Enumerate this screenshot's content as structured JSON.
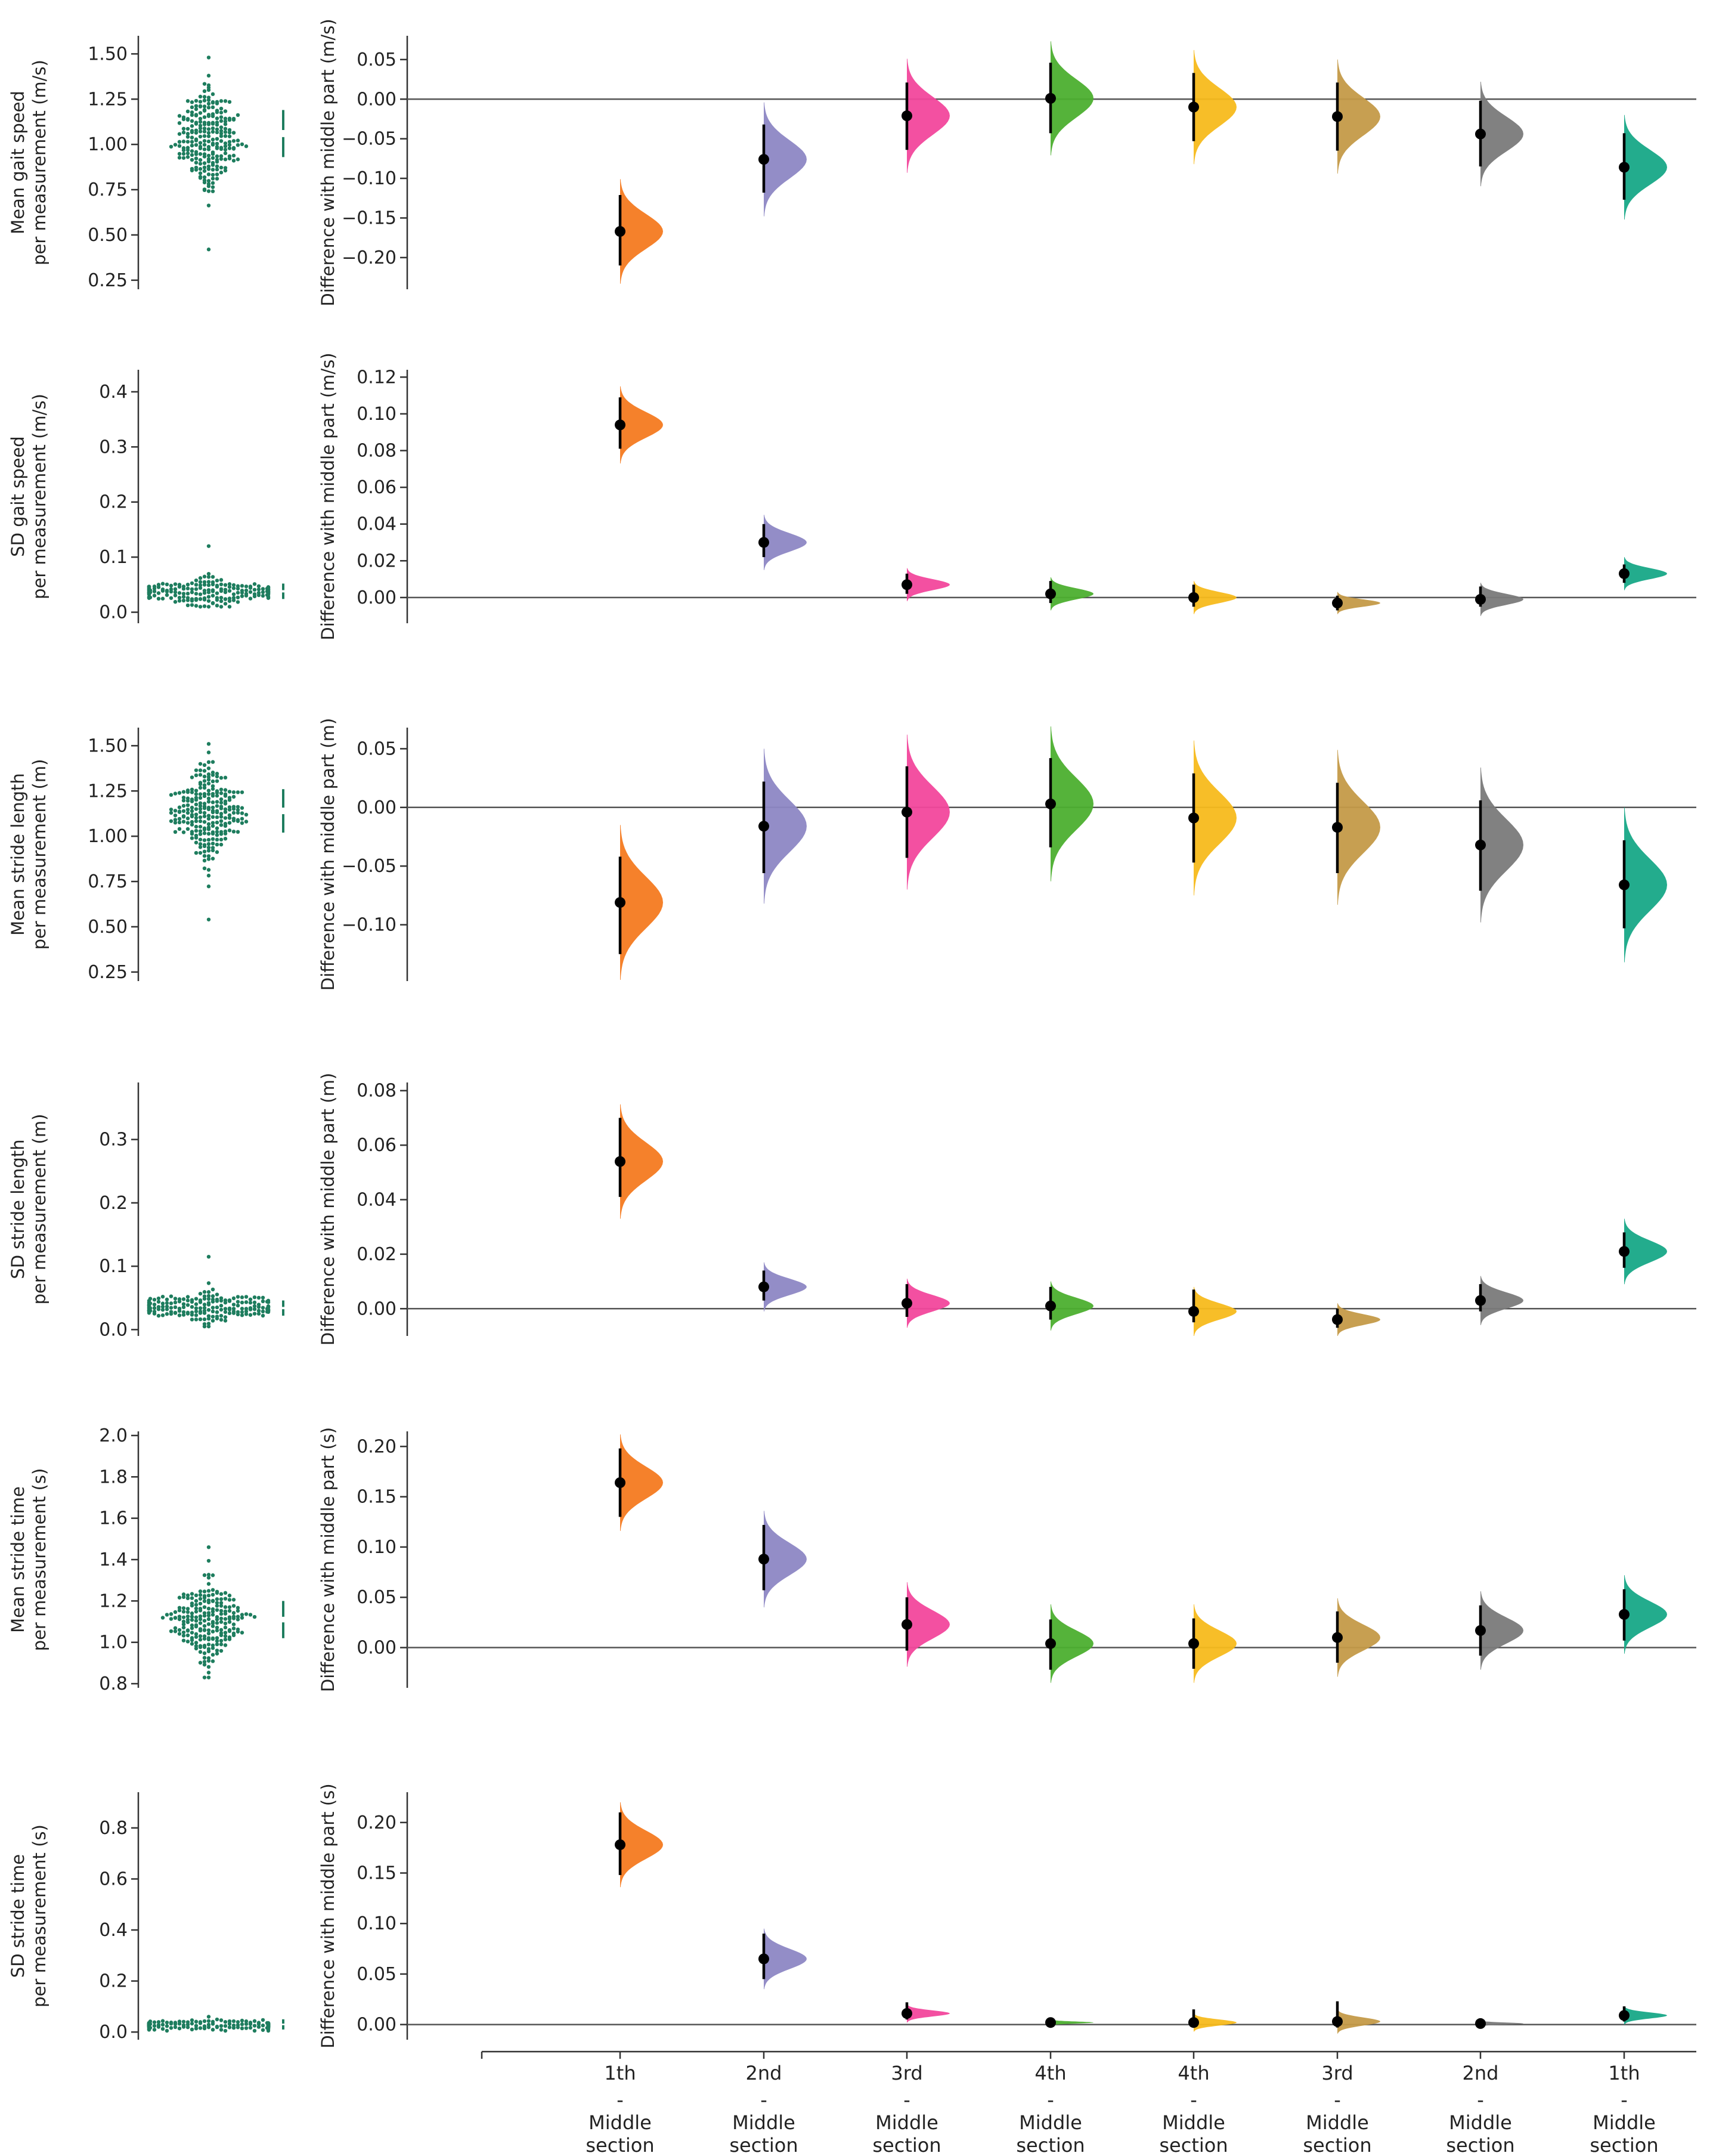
{
  "chart_data": [
    {
      "type": "estimation-plot",
      "raw_ylabel": [
        "Mean gait speed",
        "per measurement (m/s)"
      ],
      "raw_yticks": [
        "1.50",
        "1.25",
        "1.00",
        "0.75",
        "0.50",
        "0.25"
      ],
      "raw_ylim": [
        0.2,
        1.6
      ],
      "raw_distribution": {
        "center": 1.03,
        "spread": 0.14,
        "min": 0.42,
        "max": 1.48,
        "n": 240
      },
      "raw_gap": {
        "center": 1.06,
        "half": 0.13
      },
      "diff_ylabel": "Difference with middle part (m/s)",
      "diff_yticks": [
        "0.05",
        "0.00",
        "−0.05",
        "−0.10",
        "−0.15",
        "−0.20"
      ],
      "diff_ylim": [
        -0.24,
        0.08
      ],
      "diffs": [
        {
          "est": -0.167,
          "lo": -0.21,
          "hi": -0.121,
          "spread": 0.022
        },
        {
          "est": -0.076,
          "lo": -0.118,
          "hi": -0.032,
          "spread": 0.024
        },
        {
          "est": -0.021,
          "lo": -0.064,
          "hi": 0.021,
          "spread": 0.024
        },
        {
          "est": 0.001,
          "lo": -0.043,
          "hi": 0.046,
          "spread": 0.024
        },
        {
          "est": -0.01,
          "lo": -0.053,
          "hi": 0.033,
          "spread": 0.024
        },
        {
          "est": -0.022,
          "lo": -0.065,
          "hi": 0.021,
          "spread": 0.024
        },
        {
          "est": -0.044,
          "lo": -0.085,
          "hi": -0.002,
          "spread": 0.022
        },
        {
          "est": -0.086,
          "lo": -0.127,
          "hi": -0.043,
          "spread": 0.022
        }
      ]
    },
    {
      "type": "estimation-plot",
      "raw_ylabel": [
        "SD gait speed",
        "per measurement (m/s)"
      ],
      "raw_yticks": [
        "0.4",
        "0.3",
        "0.2",
        "0.1",
        "0.0"
      ],
      "raw_ylim": [
        -0.02,
        0.44
      ],
      "raw_distribution": {
        "center": 0.037,
        "spread": 0.012,
        "min": 0.01,
        "max": 0.12,
        "n": 200
      },
      "raw_gap": {
        "center": 0.038,
        "half": 0.014
      },
      "diff_ylabel": "Difference with middle part (m/s)",
      "diff_yticks": [
        "0.12",
        "0.10",
        "0.08",
        "0.06",
        "0.04",
        "0.02",
        "0.00"
      ],
      "diff_ylim": [
        -0.014,
        0.124
      ],
      "diffs": [
        {
          "est": 0.094,
          "lo": 0.081,
          "hi": 0.109,
          "spread": 0.007
        },
        {
          "est": 0.03,
          "lo": 0.022,
          "hi": 0.04,
          "spread": 0.005
        },
        {
          "est": 0.007,
          "lo": 0.002,
          "hi": 0.013,
          "spread": 0.003
        },
        {
          "est": 0.002,
          "lo": -0.003,
          "hi": 0.009,
          "spread": 0.003
        },
        {
          "est": 0.0,
          "lo": -0.005,
          "hi": 0.007,
          "spread": 0.003
        },
        {
          "est": -0.003,
          "lo": -0.007,
          "hi": 0.001,
          "spread": 0.002
        },
        {
          "est": -0.001,
          "lo": -0.005,
          "hi": 0.006,
          "spread": 0.003
        },
        {
          "est": 0.013,
          "lo": 0.008,
          "hi": 0.018,
          "spread": 0.003
        }
      ]
    },
    {
      "type": "estimation-plot",
      "raw_ylabel": [
        "Mean stride length",
        "per measurement (m)"
      ],
      "raw_yticks": [
        "1.50",
        "1.25",
        "1.00",
        "0.75",
        "0.50",
        "0.25"
      ],
      "raw_ylim": [
        0.2,
        1.6
      ],
      "raw_distribution": {
        "center": 1.13,
        "spread": 0.12,
        "min": 0.54,
        "max": 1.51,
        "n": 240
      },
      "raw_gap": {
        "center": 1.14,
        "half": 0.12
      },
      "diff_ylabel": "Difference with middle part (m)",
      "diff_yticks": [
        "0.05",
        "0.00",
        "−0.05",
        "−0.10"
      ],
      "diff_ylim": [
        -0.148,
        0.068
      ],
      "diffs": [
        {
          "est": -0.081,
          "lo": -0.125,
          "hi": -0.042,
          "spread": 0.022
        },
        {
          "est": -0.016,
          "lo": -0.056,
          "hi": 0.022,
          "spread": 0.022
        },
        {
          "est": -0.004,
          "lo": -0.043,
          "hi": 0.035,
          "spread": 0.022
        },
        {
          "est": 0.003,
          "lo": -0.034,
          "hi": 0.042,
          "spread": 0.022
        },
        {
          "est": -0.009,
          "lo": -0.047,
          "hi": 0.029,
          "spread": 0.022
        },
        {
          "est": -0.017,
          "lo": -0.056,
          "hi": 0.021,
          "spread": 0.022
        },
        {
          "est": -0.032,
          "lo": -0.071,
          "hi": 0.006,
          "spread": 0.022
        },
        {
          "est": -0.066,
          "lo": -0.103,
          "hi": -0.028,
          "spread": 0.022
        }
      ]
    },
    {
      "type": "estimation-plot",
      "raw_ylabel": [
        "SD stride length",
        "per measurement (m)"
      ],
      "raw_yticks": [
        "0.3",
        "0.2",
        "0.1",
        "0.0"
      ],
      "raw_ylim": [
        -0.01,
        0.39
      ],
      "raw_distribution": {
        "center": 0.034,
        "spread": 0.012,
        "min": 0.005,
        "max": 0.115,
        "n": 200
      },
      "raw_gap": {
        "center": 0.034,
        "half": 0.012
      },
      "diff_ylabel": "Difference with middle part (m)",
      "diff_yticks": [
        "0.08",
        "0.06",
        "0.04",
        "0.02",
        "0.00"
      ],
      "diff_ylim": [
        -0.01,
        0.083
      ],
      "diffs": [
        {
          "est": 0.054,
          "lo": 0.041,
          "hi": 0.07,
          "spread": 0.007
        },
        {
          "est": 0.008,
          "lo": 0.003,
          "hi": 0.014,
          "spread": 0.003
        },
        {
          "est": 0.002,
          "lo": -0.003,
          "hi": 0.009,
          "spread": 0.003
        },
        {
          "est": 0.001,
          "lo": -0.004,
          "hi": 0.008,
          "spread": 0.003
        },
        {
          "est": -0.001,
          "lo": -0.005,
          "hi": 0.007,
          "spread": 0.003
        },
        {
          "est": -0.004,
          "lo": -0.007,
          "hi": 0.0,
          "spread": 0.002
        },
        {
          "est": 0.003,
          "lo": -0.001,
          "hi": 0.009,
          "spread": 0.003
        },
        {
          "est": 0.021,
          "lo": 0.015,
          "hi": 0.028,
          "spread": 0.004
        }
      ]
    },
    {
      "type": "estimation-plot",
      "raw_ylabel": [
        "Mean stride time",
        "per measurement (s)"
      ],
      "raw_yticks": [
        "2.0",
        "1.8",
        "1.6",
        "1.4",
        "1.2",
        "1.0",
        "0.8"
      ],
      "raw_ylim": [
        0.78,
        2.02
      ],
      "raw_distribution": {
        "center": 1.11,
        "spread": 0.09,
        "min": 0.83,
        "max": 1.46,
        "n": 220
      },
      "raw_gap": {
        "center": 1.11,
        "half": 0.09
      },
      "diff_ylabel": "Difference with middle part (s)",
      "diff_yticks": [
        "0.20",
        "0.15",
        "0.10",
        "0.05",
        "0.00"
      ],
      "diff_ylim": [
        -0.04,
        0.215
      ],
      "diffs": [
        {
          "est": 0.164,
          "lo": 0.13,
          "hi": 0.198,
          "spread": 0.016
        },
        {
          "est": 0.088,
          "lo": 0.057,
          "hi": 0.122,
          "spread": 0.016
        },
        {
          "est": 0.023,
          "lo": -0.003,
          "hi": 0.05,
          "spread": 0.014
        },
        {
          "est": 0.004,
          "lo": -0.022,
          "hi": 0.028,
          "spread": 0.013
        },
        {
          "est": 0.004,
          "lo": -0.021,
          "hi": 0.029,
          "spread": 0.013
        },
        {
          "est": 0.01,
          "lo": -0.015,
          "hi": 0.036,
          "spread": 0.013
        },
        {
          "est": 0.017,
          "lo": -0.008,
          "hi": 0.042,
          "spread": 0.013
        },
        {
          "est": 0.033,
          "lo": 0.007,
          "hi": 0.058,
          "spread": 0.013
        }
      ]
    },
    {
      "type": "estimation-plot",
      "raw_ylabel": [
        "SD stride time",
        "per measurement (s)"
      ],
      "raw_yticks": [
        "0.8",
        "0.6",
        "0.4",
        "0.2",
        "0.0"
      ],
      "raw_ylim": [
        -0.03,
        0.94
      ],
      "raw_distribution": {
        "center": 0.026,
        "spread": 0.01,
        "min": 0.005,
        "max": 0.06,
        "n": 200
      },
      "raw_gap": {
        "center": 0.03,
        "half": 0.02
      },
      "diff_ylabel": "Difference with middle part (s)",
      "diff_yticks": [
        "0.20",
        "0.15",
        "0.10",
        "0.05",
        "0.00"
      ],
      "diff_ylim": [
        -0.015,
        0.23
      ],
      "diffs": [
        {
          "est": 0.178,
          "lo": 0.148,
          "hi": 0.21,
          "spread": 0.014
        },
        {
          "est": 0.065,
          "lo": 0.045,
          "hi": 0.09,
          "spread": 0.01
        },
        {
          "est": 0.011,
          "lo": 0.005,
          "hi": 0.022,
          "spread": 0.003
        },
        {
          "est": 0.002,
          "lo": 0.0,
          "hi": 0.005,
          "spread": 0.001
        },
        {
          "est": 0.002,
          "lo": -0.002,
          "hi": 0.015,
          "spread": 0.003
        },
        {
          "est": 0.003,
          "lo": -0.003,
          "hi": 0.023,
          "spread": 0.004
        },
        {
          "est": 0.001,
          "lo": 0.0,
          "hi": 0.003,
          "spread": 0.001
        },
        {
          "est": 0.009,
          "lo": 0.003,
          "hi": 0.018,
          "spread": 0.003
        }
      ]
    }
  ],
  "comparisons": [
    {
      "top": "1th",
      "dash": "-",
      "mid": "Middle",
      "bottom": "section"
    },
    {
      "top": "2nd",
      "dash": "-",
      "mid": "Middle",
      "bottom": "section"
    },
    {
      "top": "3rd",
      "dash": "-",
      "mid": "Middle",
      "bottom": "section"
    },
    {
      "top": "4th",
      "dash": "-",
      "mid": "Middle",
      "bottom": "section"
    },
    {
      "top": "4th",
      "dash": "-",
      "mid": "Middle",
      "bottom": "section"
    },
    {
      "top": "3rd",
      "dash": "-",
      "mid": "Middle",
      "bottom": "section"
    },
    {
      "top": "2nd",
      "dash": "-",
      "mid": "Middle",
      "bottom": "section"
    },
    {
      "top": "1th",
      "dash": "-",
      "mid": "Middle",
      "bottom": "section"
    }
  ],
  "colors": {
    "comparisons": [
      "#F47A20",
      "#8D87C4",
      "#F2479C",
      "#4CAF2F",
      "#F7BA1C",
      "#C49A48",
      "#7A7A7A",
      "#17A887"
    ],
    "raw_points": "#1E7D5E",
    "axis": "#333333",
    "zero_line": "#555555"
  }
}
